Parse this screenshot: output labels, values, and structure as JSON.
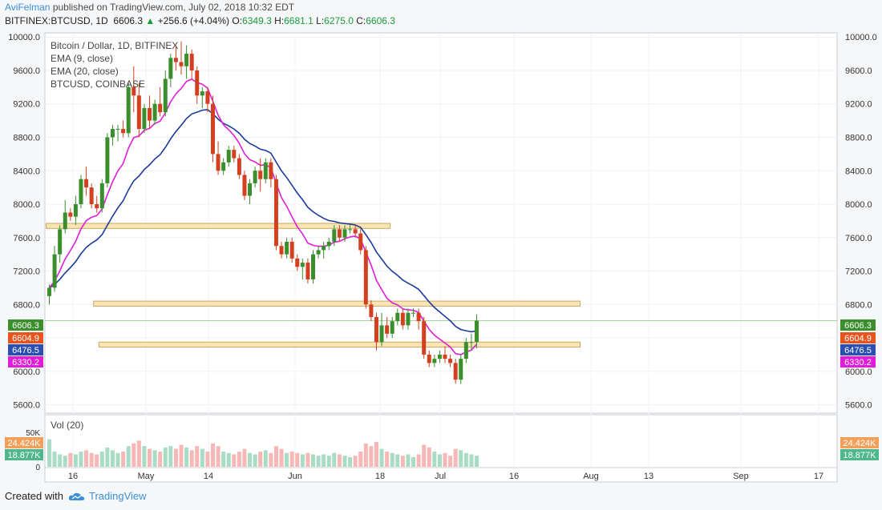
{
  "header": {
    "author": "AviFelman",
    "published": "published on TradingView.com, July 02, 2018 10:32 EDT",
    "symbol": "BITFINEX:BTCUSD, 1D",
    "last": "6606.3",
    "change_arrow": "▲",
    "change": "+256.6 (+4.04%)",
    "o_label": "O:",
    "o_value": "6349.3",
    "h_label": "H:",
    "h_value": "6681.1",
    "l_label": "L:",
    "l_value": "6275.0",
    "c_label": "C:",
    "c_value": "6606.3"
  },
  "legend": {
    "title": "Bitcoin / Dollar, 1D, BITFINEX",
    "ema9": "EMA (9, close)",
    "ema20": "EMA (20, close)",
    "compare": "BTCUSD, COINBASE"
  },
  "volume_label": "Vol (20)",
  "footer": {
    "created_with": "Created with",
    "brand": "TradingView"
  },
  "colors": {
    "up": "#3a8f2c",
    "down": "#d3401f",
    "ema9": "#e01cd8",
    "ema20": "#1c3a9a",
    "zone_fill": "#fbe5b4",
    "zone_stroke": "#c9a764",
    "vol_up": "#a8dcc4",
    "vol_down": "#f7b7b7"
  },
  "chart_data": {
    "type": "candlestick",
    "y_ticks": [
      "10000.0",
      "9600.0",
      "9200.0",
      "8800.0",
      "8400.0",
      "8000.0",
      "7600.0",
      "7200.0",
      "6800.0",
      "6400.0",
      "6000.0",
      "5600.0"
    ],
    "ylim": [
      5500,
      10050
    ],
    "x_ticks": [
      "16",
      "May",
      "14",
      "Jun",
      "18",
      "Jul",
      "16",
      "Aug",
      "13",
      "Sep",
      "17"
    ],
    "start_date": "2018-04-12",
    "price_tags": [
      {
        "label": "6606.3",
        "color": "#3a8f2c"
      },
      {
        "label": "6604.9",
        "color": "#e8541e"
      },
      {
        "label": "6476.5",
        "color": "#2a4fb0"
      },
      {
        "label": "6330.2",
        "color": "#e01cd8"
      }
    ],
    "vol_ticks": [
      "50K",
      "0"
    ],
    "vol_tags": [
      {
        "label": "24.424K",
        "color": "#f0a05a"
      },
      {
        "label": "18.877K",
        "color": "#4fb88a"
      }
    ],
    "zones": [
      {
        "from": "2018-04-12",
        "to": "2018-06-15",
        "y_low": 7710,
        "y_high": 7770
      },
      {
        "from": "2018-04-21",
        "to": "2018-07-21",
        "y_low": 6780,
        "y_high": 6840
      },
      {
        "from": "2018-04-22",
        "to": "2018-07-21",
        "y_low": 6290,
        "y_high": 6350
      }
    ],
    "candles": [
      [
        6900,
        7040,
        6800,
        7000
      ],
      [
        7000,
        7500,
        6950,
        7400
      ],
      [
        7400,
        7750,
        7300,
        7700
      ],
      [
        7700,
        8050,
        7650,
        7900
      ],
      [
        7900,
        7950,
        7800,
        7850
      ],
      [
        7850,
        8100,
        7750,
        8000
      ],
      [
        8000,
        8350,
        7950,
        8300
      ],
      [
        8300,
        8450,
        8100,
        8200
      ],
      [
        8200,
        8250,
        7950,
        8000
      ],
      [
        8000,
        8100,
        7900,
        7950
      ],
      [
        7950,
        8300,
        7900,
        8250
      ],
      [
        8250,
        8850,
        8200,
        8800
      ],
      [
        8800,
        8950,
        8700,
        8900
      ],
      [
        8900,
        8950,
        8750,
        8900
      ],
      [
        8900,
        9000,
        8800,
        8850
      ],
      [
        8850,
        9450,
        8800,
        9400
      ],
      [
        9400,
        9650,
        9100,
        9300
      ],
      [
        9300,
        9450,
        8800,
        8900
      ],
      [
        8900,
        9200,
        8850,
        9150
      ],
      [
        9150,
        9300,
        8900,
        9000
      ],
      [
        9000,
        9250,
        8950,
        9200
      ],
      [
        9200,
        9400,
        9050,
        9100
      ],
      [
        9100,
        9600,
        9050,
        9500
      ],
      [
        9500,
        9800,
        9400,
        9750
      ],
      [
        9750,
        9900,
        9600,
        9700
      ],
      [
        9700,
        9950,
        9550,
        9650
      ],
      [
        9650,
        9900,
        9500,
        9800
      ],
      [
        9800,
        9850,
        9500,
        9600
      ],
      [
        9600,
        9650,
        9200,
        9300
      ],
      [
        9300,
        9400,
        9150,
        9350
      ],
      [
        9350,
        9400,
        9100,
        9200
      ],
      [
        9200,
        9300,
        8500,
        8600
      ],
      [
        8600,
        8750,
        8350,
        8400
      ],
      [
        8400,
        8550,
        8350,
        8500
      ],
      [
        8500,
        8700,
        8450,
        8650
      ],
      [
        8650,
        8700,
        8500,
        8550
      ],
      [
        8550,
        8600,
        8300,
        8350
      ],
      [
        8350,
        8400,
        8050,
        8100
      ],
      [
        8100,
        8300,
        8000,
        8250
      ],
      [
        8250,
        8450,
        8200,
        8400
      ],
      [
        8400,
        8550,
        8150,
        8300
      ],
      [
        8300,
        8550,
        8250,
        8500
      ],
      [
        8500,
        8550,
        8200,
        8300
      ],
      [
        8300,
        8350,
        7450,
        7500
      ],
      [
        7500,
        7550,
        7350,
        7400
      ],
      [
        7400,
        7600,
        7350,
        7550
      ],
      [
        7550,
        7600,
        7300,
        7350
      ],
      [
        7350,
        7400,
        7200,
        7250
      ],
      [
        7250,
        7350,
        7100,
        7300
      ],
      [
        7300,
        7350,
        7050,
        7100
      ],
      [
        7100,
        7450,
        7050,
        7400
      ],
      [
        7400,
        7500,
        7350,
        7450
      ],
      [
        7450,
        7550,
        7350,
        7500
      ],
      [
        7500,
        7600,
        7450,
        7550
      ],
      [
        7550,
        7750,
        7500,
        7700
      ],
      [
        7700,
        7750,
        7550,
        7600
      ],
      [
        7600,
        7750,
        7550,
        7700
      ],
      [
        7700,
        7750,
        7650,
        7700
      ],
      [
        7700,
        7750,
        7600,
        7650
      ],
      [
        7650,
        7700,
        7400,
        7450
      ],
      [
        7450,
        7500,
        6750,
        6800
      ],
      [
        6800,
        6850,
        6600,
        6650
      ],
      [
        6650,
        6700,
        6250,
        6350
      ],
      [
        6350,
        6700,
        6300,
        6550
      ],
      [
        6550,
        6650,
        6400,
        6450
      ],
      [
        6450,
        6650,
        6400,
        6600
      ],
      [
        6600,
        6750,
        6550,
        6700
      ],
      [
        6700,
        6750,
        6500,
        6550
      ],
      [
        6550,
        6750,
        6500,
        6700
      ],
      [
        6700,
        6750,
        6650,
        6700
      ],
      [
        6700,
        6750,
        6500,
        6600
      ],
      [
        6600,
        6650,
        6150,
        6200
      ],
      [
        6200,
        6250,
        6050,
        6100
      ],
      [
        6100,
        6200,
        6050,
        6150
      ],
      [
        6150,
        6250,
        6100,
        6200
      ],
      [
        6200,
        6300,
        6100,
        6150
      ],
      [
        6150,
        6200,
        6050,
        6100
      ],
      [
        6100,
        6150,
        5850,
        5900
      ],
      [
        5900,
        6200,
        5850,
        6150
      ],
      [
        6150,
        6400,
        6100,
        6350
      ],
      [
        6350,
        6450,
        6250,
        6350
      ],
      [
        6350,
        6680,
        6275,
        6606
      ]
    ],
    "volumes": [
      40,
      22,
      18,
      16,
      20,
      18,
      22,
      24,
      20,
      18,
      22,
      28,
      24,
      20,
      22,
      30,
      34,
      38,
      30,
      26,
      24,
      22,
      28,
      30,
      26,
      32,
      28,
      24,
      30,
      26,
      22,
      34,
      30,
      22,
      20,
      18,
      22,
      26,
      20,
      18,
      22,
      24,
      20,
      30,
      26,
      20,
      22,
      20,
      18,
      20,
      18,
      16,
      18,
      16,
      20,
      18,
      16,
      14,
      16,
      22,
      34,
      30,
      36,
      26,
      22,
      20,
      18,
      16,
      18,
      14,
      18,
      32,
      28,
      22,
      18,
      20,
      16,
      26,
      24,
      20,
      18,
      16
    ]
  }
}
